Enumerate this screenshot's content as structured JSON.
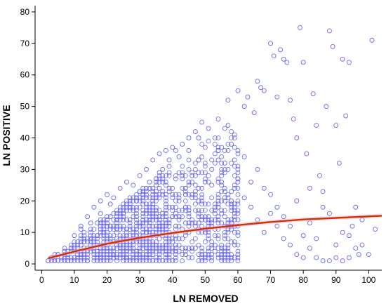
{
  "chart_data": {
    "type": "scatter",
    "title": "",
    "xlabel": "LN REMOVED",
    "ylabel": "LN POSITIVE",
    "xlim": [
      -2,
      104
    ],
    "ylim": [
      -2,
      82
    ],
    "x_ticks": [
      0,
      10,
      20,
      30,
      40,
      50,
      60,
      70,
      80,
      90,
      100
    ],
    "y_ticks": [
      0,
      10,
      20,
      30,
      40,
      50,
      60,
      70,
      80
    ],
    "grid": false,
    "series": [
      {
        "kind": "points",
        "marker": "open-circle",
        "color": "#6666ee",
        "density_note_values": [],
        "points": [
          [
            2,
            1
          ],
          [
            3,
            2
          ],
          [
            4,
            1
          ],
          [
            5,
            3
          ],
          [
            6,
            2
          ],
          [
            7,
            4
          ],
          [
            8,
            1
          ],
          [
            9,
            5
          ],
          [
            10,
            2
          ],
          [
            11,
            6
          ],
          [
            12,
            3
          ],
          [
            13,
            7
          ],
          [
            14,
            1
          ],
          [
            15,
            8
          ],
          [
            16,
            4
          ],
          [
            17,
            9
          ],
          [
            18,
            2
          ],
          [
            19,
            10
          ],
          [
            20,
            5
          ],
          [
            21,
            12
          ],
          [
            22,
            3
          ],
          [
            23,
            14
          ],
          [
            24,
            6
          ],
          [
            25,
            16
          ],
          [
            26,
            2
          ],
          [
            27,
            18
          ],
          [
            28,
            8
          ],
          [
            29,
            20
          ],
          [
            30,
            4
          ],
          [
            31,
            22
          ],
          [
            32,
            10
          ],
          [
            33,
            24
          ],
          [
            34,
            6
          ],
          [
            35,
            27
          ],
          [
            36,
            12
          ],
          [
            37,
            30
          ],
          [
            38,
            3
          ],
          [
            39,
            33
          ],
          [
            40,
            15
          ],
          [
            41,
            36
          ],
          [
            42,
            8
          ],
          [
            43,
            38
          ],
          [
            44,
            18
          ],
          [
            45,
            40
          ],
          [
            46,
            5
          ],
          [
            47,
            42
          ],
          [
            48,
            20
          ],
          [
            49,
            45
          ],
          [
            50,
            10
          ],
          [
            12,
            12
          ],
          [
            14,
            15
          ],
          [
            16,
            18
          ],
          [
            18,
            20
          ],
          [
            20,
            22
          ],
          [
            22,
            21
          ],
          [
            24,
            24
          ],
          [
            26,
            26
          ],
          [
            28,
            25
          ],
          [
            30,
            28
          ],
          [
            32,
            30
          ],
          [
            34,
            33
          ],
          [
            36,
            35
          ],
          [
            38,
            36
          ],
          [
            40,
            37
          ],
          [
            10,
            9
          ],
          [
            12,
            11
          ],
          [
            15,
            13
          ],
          [
            18,
            16
          ],
          [
            21,
            19
          ],
          [
            24,
            17
          ],
          [
            27,
            21
          ],
          [
            30,
            23
          ],
          [
            33,
            26
          ],
          [
            36,
            29
          ],
          [
            39,
            31
          ],
          [
            42,
            34
          ],
          [
            45,
            36
          ],
          [
            48,
            40
          ],
          [
            51,
            43
          ],
          [
            54,
            46
          ],
          [
            57,
            52
          ],
          [
            60,
            55
          ],
          [
            62,
            50
          ],
          [
            63,
            53
          ],
          [
            65,
            48
          ],
          [
            66,
            58
          ],
          [
            67,
            56
          ],
          [
            68,
            55
          ],
          [
            70,
            70
          ],
          [
            71,
            66
          ],
          [
            72,
            53
          ],
          [
            73,
            68
          ],
          [
            74,
            65
          ],
          [
            75,
            64
          ],
          [
            76,
            52
          ],
          [
            77,
            46
          ],
          [
            78,
            40
          ],
          [
            79,
            75
          ],
          [
            80,
            64
          ],
          [
            81,
            35
          ],
          [
            82,
            24
          ],
          [
            83,
            54
          ],
          [
            84,
            44
          ],
          [
            85,
            28
          ],
          [
            86,
            23
          ],
          [
            87,
            50
          ],
          [
            88,
            74
          ],
          [
            89,
            69
          ],
          [
            90,
            44
          ],
          [
            91,
            32
          ],
          [
            92,
            65
          ],
          [
            93,
            47
          ],
          [
            94,
            64
          ],
          [
            95,
            12
          ],
          [
            96,
            5
          ],
          [
            97,
            3
          ],
          [
            98,
            14
          ],
          [
            100,
            3
          ],
          [
            101,
            71
          ],
          [
            102,
            11
          ],
          [
            44,
            22
          ],
          [
            46,
            28
          ],
          [
            48,
            33
          ],
          [
            50,
            26
          ],
          [
            52,
            30
          ],
          [
            54,
            36
          ],
          [
            56,
            32
          ],
          [
            58,
            38
          ],
          [
            60,
            27
          ],
          [
            62,
            34
          ],
          [
            64,
            26
          ],
          [
            66,
            30
          ],
          [
            68,
            24
          ],
          [
            70,
            22
          ],
          [
            72,
            18
          ],
          [
            74,
            15
          ],
          [
            76,
            12
          ],
          [
            78,
            20
          ],
          [
            80,
            9
          ],
          [
            82,
            13
          ],
          [
            84,
            8
          ],
          [
            86,
            18
          ],
          [
            88,
            16
          ],
          [
            90,
            6
          ],
          [
            92,
            10
          ],
          [
            94,
            9
          ],
          [
            96,
            18
          ],
          [
            98,
            6
          ],
          [
            52,
            14
          ],
          [
            54,
            18
          ],
          [
            56,
            12
          ],
          [
            58,
            20
          ],
          [
            60,
            16
          ],
          [
            62,
            21
          ],
          [
            64,
            18
          ],
          [
            66,
            14
          ],
          [
            68,
            10
          ],
          [
            70,
            16
          ],
          [
            72,
            12
          ],
          [
            74,
            8
          ],
          [
            76,
            6
          ],
          [
            78,
            3
          ],
          [
            80,
            2
          ],
          [
            82,
            5
          ],
          [
            84,
            2
          ],
          [
            86,
            1
          ],
          [
            88,
            1
          ],
          [
            90,
            2
          ],
          [
            92,
            1
          ],
          [
            94,
            2
          ]
        ]
      },
      {
        "kind": "fit-line",
        "color": "#cc3300",
        "points": [
          [
            2,
            1.8
          ],
          [
            10,
            3.9
          ],
          [
            20,
            6.4
          ],
          [
            30,
            8.3
          ],
          [
            40,
            9.8
          ],
          [
            50,
            11.2
          ],
          [
            60,
            12.3
          ],
          [
            70,
            13.3
          ],
          [
            80,
            14.1
          ],
          [
            90,
            14.6
          ],
          [
            104,
            15.3
          ]
        ]
      }
    ]
  }
}
